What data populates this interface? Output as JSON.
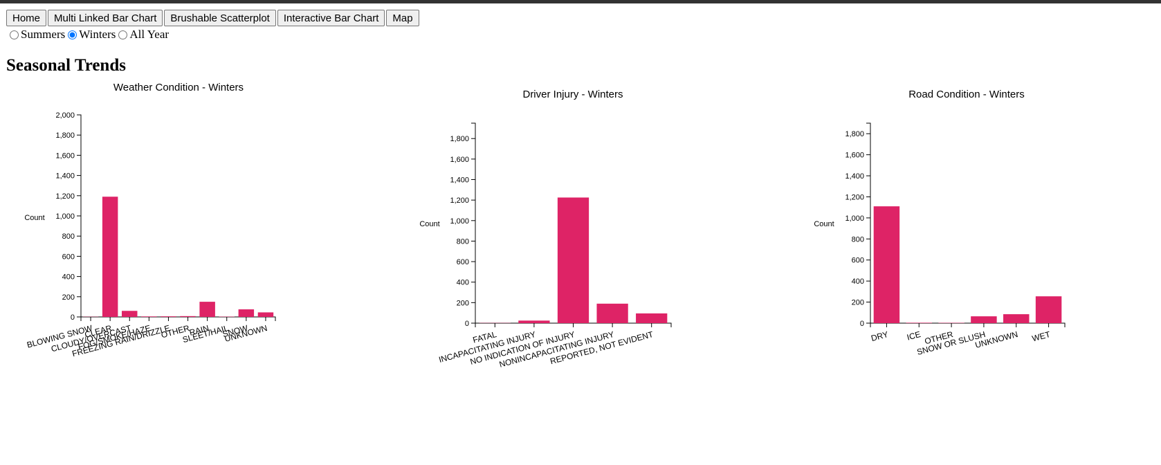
{
  "nav": {
    "buttons": [
      "Home",
      "Multi Linked Bar Chart",
      "Brushable Scatterplot",
      "Interactive Bar Chart",
      "Map"
    ]
  },
  "season_options": [
    {
      "label": "Summers",
      "checked": false
    },
    {
      "label": "Winters",
      "checked": true
    },
    {
      "label": "All Year",
      "checked": false
    }
  ],
  "page_title": "Seasonal Trends",
  "colors": {
    "bar": "#de2366",
    "topbar": "#333333"
  },
  "chart_data": [
    {
      "type": "bar",
      "title": "Weather Condition - Winters",
      "ylabel": "Count",
      "xlabel": "",
      "ylim": [
        0,
        2000
      ],
      "yticks": [
        0,
        200,
        400,
        600,
        800,
        1000,
        1200,
        1400,
        1600,
        1800,
        2000
      ],
      "categories": [
        "BLOWING SNOW",
        "CLEAR",
        "CLOUDY/OVERCAST",
        "FOG/SMOKE/HAZE",
        "FREEZING RAIN/DRIZZLE",
        "OTHER",
        "RAIN",
        "SLEET/HAIL",
        "SNOW",
        "UNKNOWN"
      ],
      "values": [
        2,
        1190,
        60,
        5,
        6,
        8,
        150,
        3,
        75,
        45
      ]
    },
    {
      "type": "bar",
      "title": "Driver Injury - Winters",
      "ylabel": "Count",
      "xlabel": "",
      "ylim": [
        0,
        1950
      ],
      "yticks": [
        0,
        200,
        400,
        600,
        800,
        1000,
        1200,
        1400,
        1600,
        1800
      ],
      "categories": [
        "FATAL",
        "INCAPACITATING INJURY",
        "NO INDICATION OF INJURY",
        "NONINCAPACITATING INJURY",
        "REPORTED, NOT EVIDENT"
      ],
      "values": [
        2,
        25,
        1225,
        190,
        95
      ]
    },
    {
      "type": "bar",
      "title": "Road Condition - Winters",
      "ylabel": "Count",
      "xlabel": "",
      "ylim": [
        0,
        1900
      ],
      "yticks": [
        0,
        200,
        400,
        600,
        800,
        1000,
        1200,
        1400,
        1600,
        1800
      ],
      "categories": [
        "DRY",
        "ICE",
        "OTHER",
        "SNOW OR SLUSH",
        "UNKNOWN",
        "WET"
      ],
      "values": [
        1110,
        4,
        3,
        65,
        85,
        255
      ]
    }
  ]
}
